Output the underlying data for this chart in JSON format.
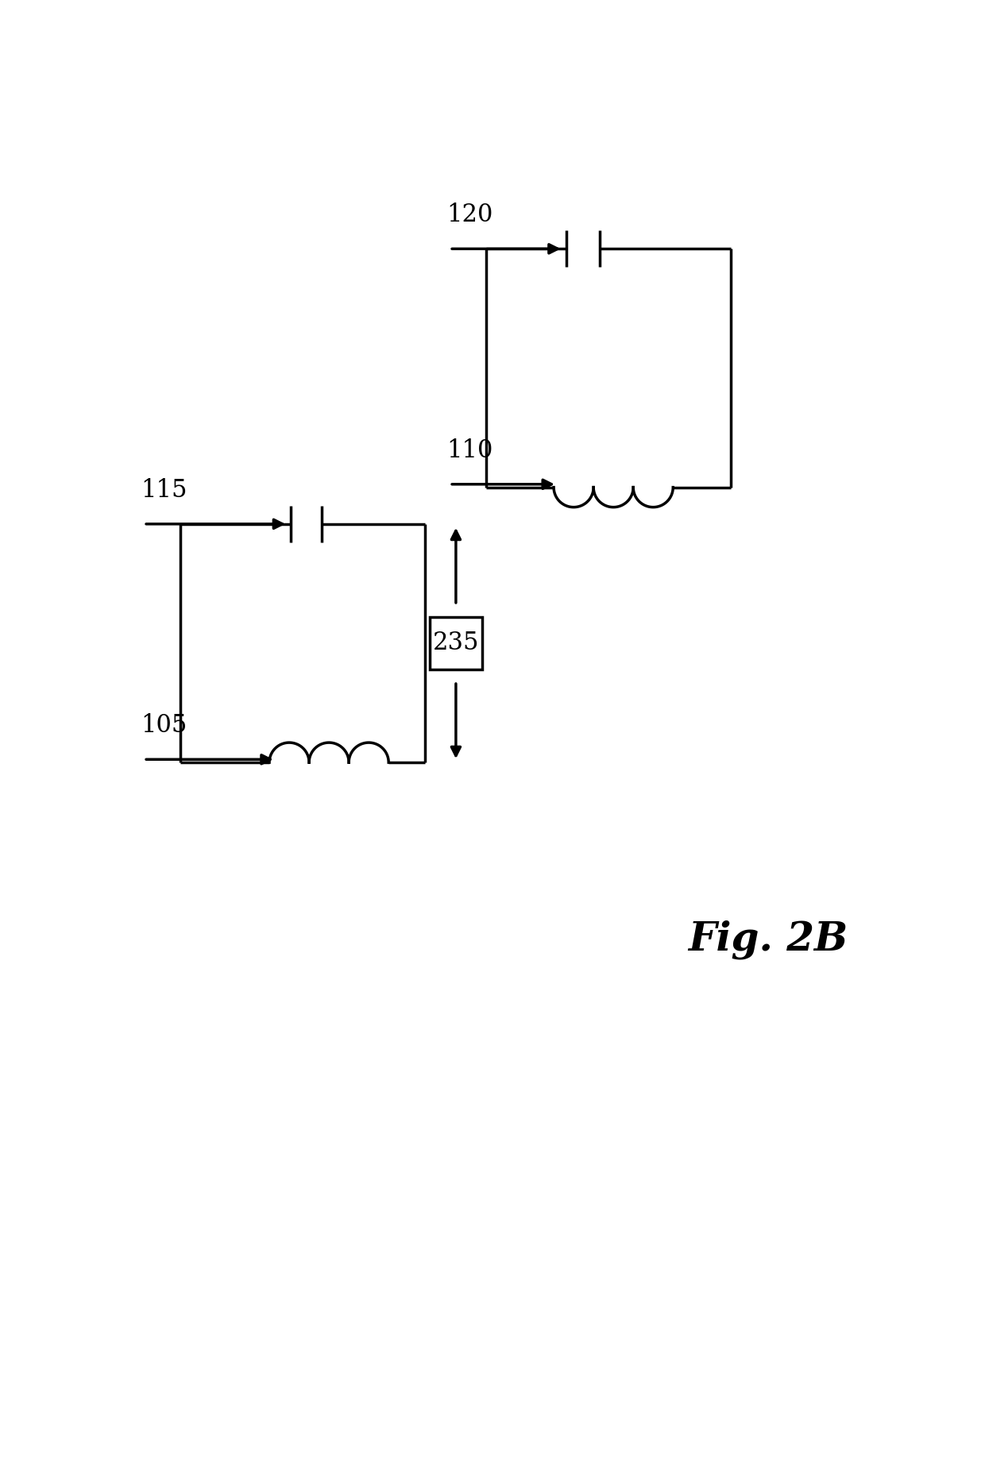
{
  "fig_label": "Fig. 2B",
  "label_105": "105",
  "label_110": "110",
  "label_115": "115",
  "label_120": "120",
  "label_235": "235",
  "background_color": "#ffffff",
  "line_color": "#000000",
  "line_width": 2.5,
  "fig_fontsize": 36,
  "label_fontsize": 22
}
